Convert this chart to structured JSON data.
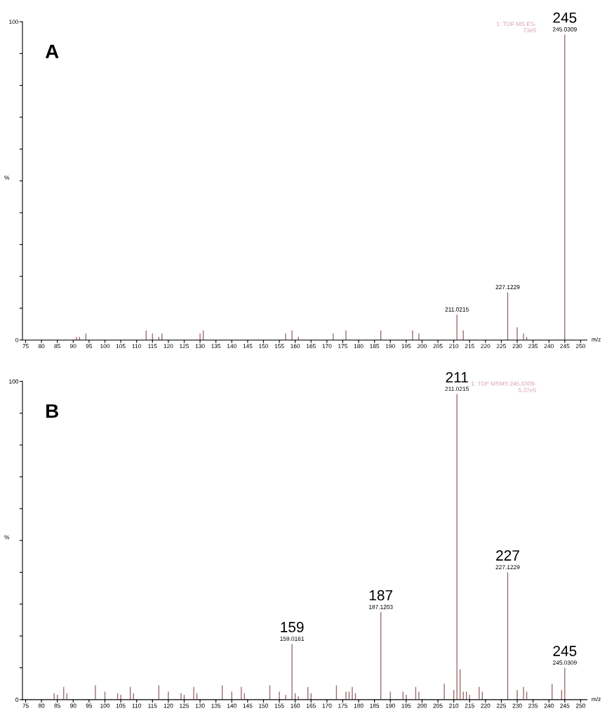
{
  "chart_data": [
    {
      "type": "bar",
      "title": "A",
      "xlabel": "m/z",
      "ylabel": "%",
      "x": [
        91,
        92,
        94,
        113,
        115,
        117,
        118,
        130,
        131,
        157,
        159,
        161,
        172,
        176,
        187,
        197,
        199,
        211,
        213,
        227,
        230,
        232,
        233,
        245
      ],
      "values": [
        1,
        1,
        2,
        3,
        2,
        1,
        2,
        2,
        3,
        2,
        3,
        1,
        2,
        3,
        3,
        3,
        2,
        8,
        3,
        15,
        4,
        2,
        1,
        96
      ],
      "color": "#9c6b6b",
      "xlim": [
        74,
        252
      ],
      "xticks": [
        75,
        80,
        85,
        90,
        95,
        100,
        105,
        110,
        115,
        120,
        125,
        130,
        135,
        140,
        145,
        150,
        155,
        160,
        165,
        170,
        175,
        180,
        185,
        190,
        195,
        200,
        205,
        210,
        215,
        220,
        225,
        230,
        235,
        240,
        245,
        250
      ],
      "ylim": [
        0,
        100
      ],
      "yticks": [
        0,
        {
          "value": 10,
          "label": null
        },
        {
          "value": 20,
          "label": null
        },
        {
          "value": 30,
          "label": null
        },
        {
          "value": 40,
          "label": null
        },
        {
          "value": 50,
          "label": null
        },
        {
          "value": 60,
          "label": null
        },
        {
          "value": 70,
          "label": null
        },
        {
          "value": 80,
          "label": null
        },
        {
          "value": 90,
          "label": null
        },
        100
      ],
      "grid": false,
      "annotations": [
        {
          "text": "245.0309",
          "x": 245,
          "y": 96
        },
        {
          "text": "245",
          "x": 245,
          "y": 96
        },
        {
          "text": "227.1229",
          "x": 227,
          "y": 15
        },
        {
          "text": "211.0215",
          "x": 211,
          "y": 8
        },
        "1: TOF MS ES-\n73e5"
      ]
    },
    {
      "type": "bar",
      "title": "B",
      "xlabel": "m/z",
      "ylabel": "%",
      "x": [
        84,
        85,
        87,
        88,
        97,
        100,
        104,
        105,
        108,
        109,
        117,
        120,
        124,
        125,
        128,
        129,
        137,
        140,
        143,
        144,
        152,
        155,
        157,
        159,
        160,
        161,
        164,
        165,
        173,
        176,
        177,
        178,
        179,
        187,
        190,
        194,
        195,
        198,
        199,
        207,
        210,
        211,
        212,
        213,
        214,
        215,
        218,
        219,
        227,
        230,
        232,
        233,
        241,
        244,
        245
      ],
      "values": [
        2,
        1.5,
        4,
        2,
        4.5,
        2.5,
        2,
        1.5,
        4,
        2,
        4.5,
        2.5,
        2,
        1.5,
        4,
        2,
        4.5,
        2.5,
        4,
        2,
        4.5,
        2.5,
        1.5,
        17.5,
        2,
        1,
        4,
        2,
        4.5,
        2.5,
        2.5,
        4,
        2,
        27.5,
        2.5,
        2.5,
        1.5,
        4,
        2.5,
        5,
        3,
        96,
        9.5,
        2.5,
        2.5,
        1.5,
        4,
        2.5,
        40,
        3,
        4,
        2.5,
        5,
        3,
        10
      ],
      "color": "#9c6b6b",
      "xlim": [
        74,
        252
      ],
      "xticks": [
        75,
        80,
        85,
        90,
        95,
        100,
        105,
        110,
        115,
        120,
        125,
        130,
        135,
        140,
        145,
        150,
        155,
        160,
        165,
        170,
        175,
        180,
        185,
        190,
        195,
        200,
        205,
        210,
        215,
        220,
        225,
        230,
        235,
        240,
        245,
        250
      ],
      "ylim": [
        0,
        100
      ],
      "yticks": [
        0,
        {
          "value": 10,
          "label": null
        },
        {
          "value": 20,
          "label": null
        },
        {
          "value": 30,
          "label": null
        },
        {
          "value": 40,
          "label": null
        },
        {
          "value": 50,
          "label": null
        },
        {
          "value": 60,
          "label": null
        },
        {
          "value": 70,
          "label": null
        },
        {
          "value": 80,
          "label": null
        },
        {
          "value": 90,
          "label": null
        },
        100
      ],
      "grid": false,
      "annotations": [
        {
          "text": "211.0215",
          "x": 211,
          "y": 96
        },
        {
          "text": "211",
          "x": 211,
          "y": 96
        },
        {
          "text": "227.1229",
          "x": 227,
          "y": 40
        },
        {
          "text": "227",
          "x": 227,
          "y": 40
        },
        {
          "text": "187.1203",
          "x": 187,
          "y": 27.5
        },
        {
          "text": "187",
          "x": 187,
          "y": 27.5
        },
        {
          "text": "159.0161",
          "x": 159,
          "y": 17.5
        },
        {
          "text": "159",
          "x": 159,
          "y": 17.5
        },
        {
          "text": "245.0309",
          "x": 245,
          "y": 10
        },
        {
          "text": "245",
          "x": 245,
          "y": 10
        },
        "1: TOF MSMS 245.0309-\n5.37e5"
      ]
    }
  ]
}
